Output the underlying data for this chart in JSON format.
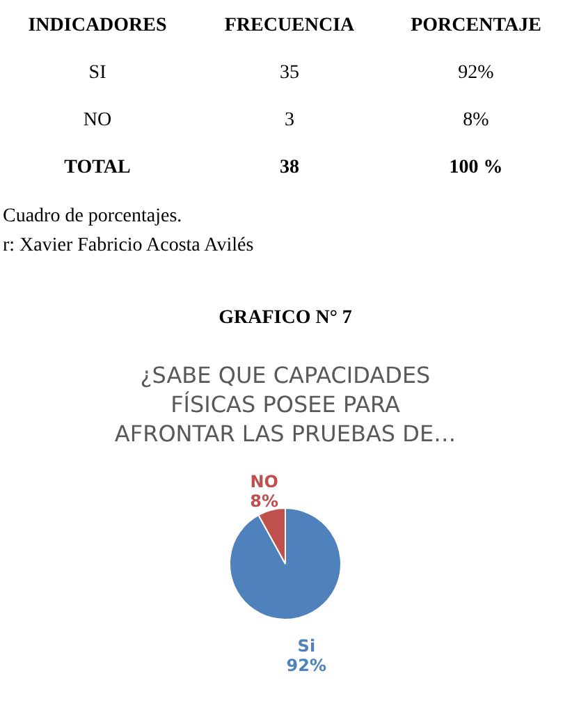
{
  "chart_data": {
    "type": "pie",
    "title": "¿SABE QUE CAPACIDADES FÍSICAS POSEE PARA AFRONTAR LAS PRUEBAS DE…",
    "categories": [
      "Si",
      "NO"
    ],
    "values": [
      92,
      8
    ],
    "colors": [
      "#4f81bd",
      "#c0504d"
    ],
    "value_labels": [
      "92%",
      "8%"
    ],
    "annotations": [
      "INDICADORES",
      "FRECUENCIA",
      "PORCENTAJE",
      "SI",
      "35",
      "92%",
      "NO",
      "3",
      "8%",
      "TOTAL",
      "38",
      "100 %",
      "Cuadro de porcentajes.",
      "r: Xavier Fabricio Acosta Avilés",
      "GRAFICO N° 7"
    ]
  }
}
